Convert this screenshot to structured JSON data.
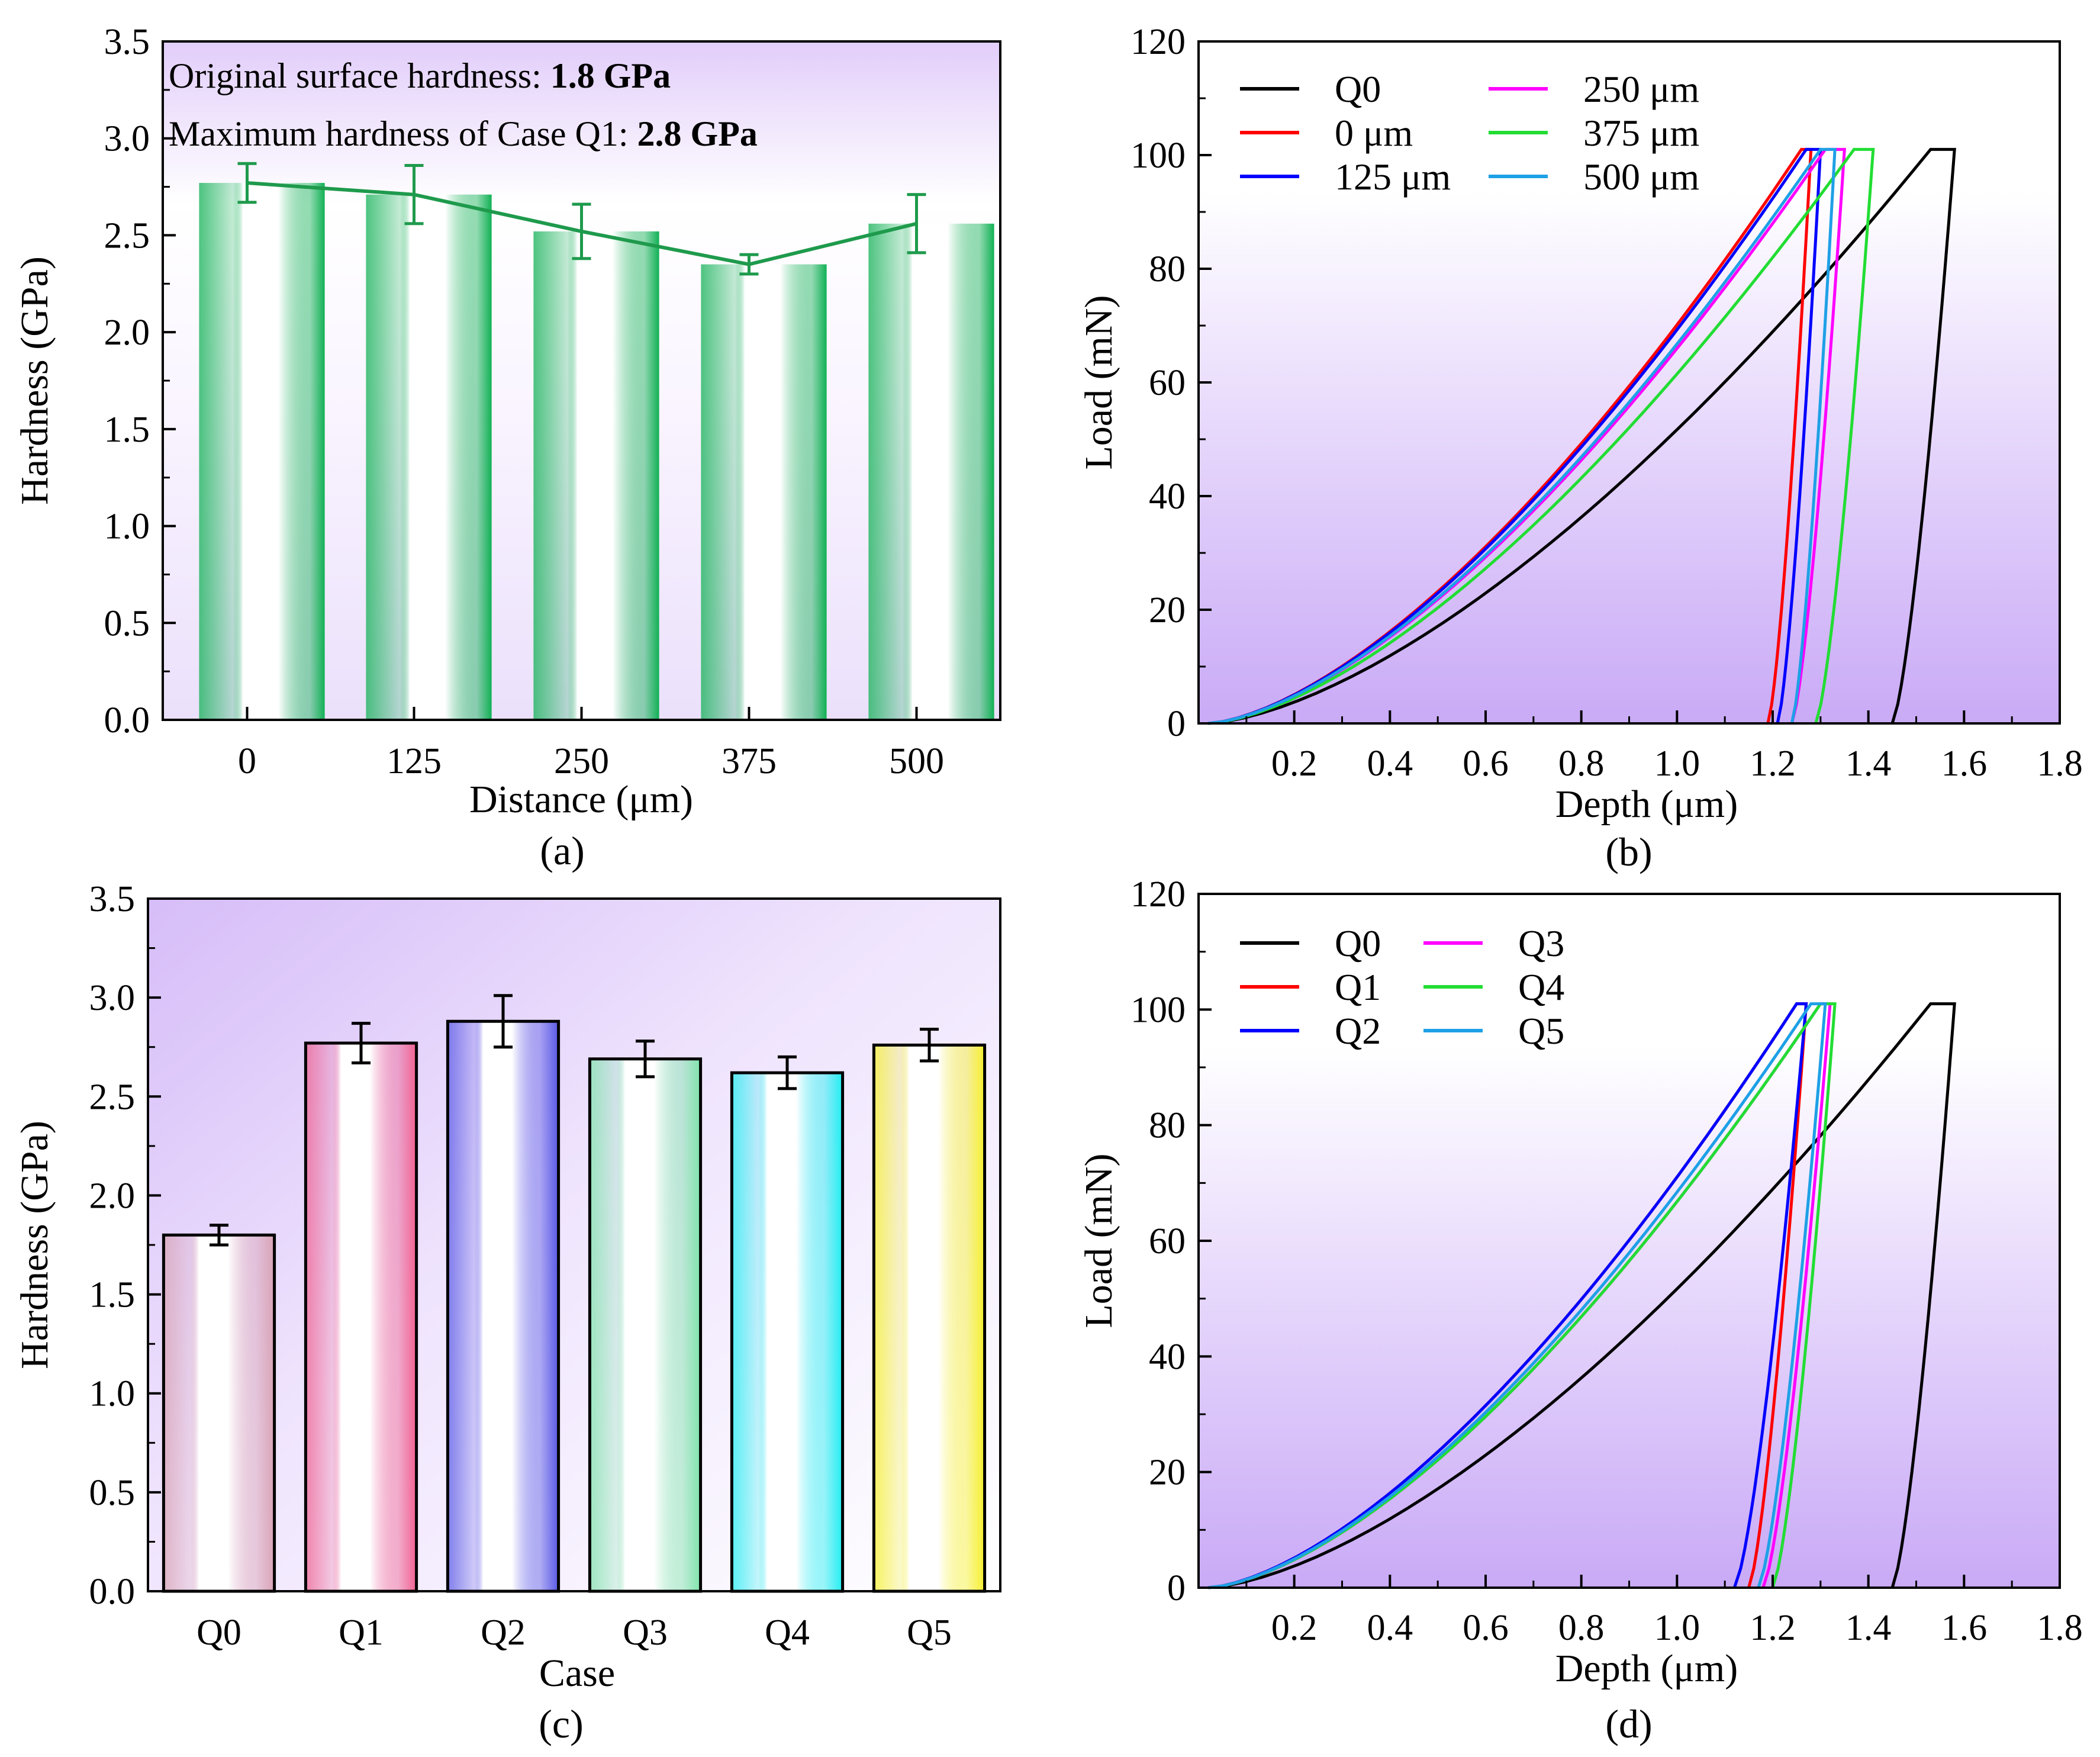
{
  "panels": [
    {
      "id": "a",
      "caption": "(a)",
      "chart_data": {
        "type": "bar",
        "xlabel": "Distance (μm)",
        "ylabel": "Hardness (GPa)",
        "ylim": [
          0,
          3.5
        ],
        "yticks": [
          "0.0",
          "0.5",
          "1.0",
          "1.5",
          "2.0",
          "2.5",
          "3.0",
          "3.5"
        ],
        "categories": [
          "0",
          "125",
          "250",
          "375",
          "500"
        ],
        "values": [
          2.77,
          2.71,
          2.52,
          2.35,
          2.56
        ],
        "errors": [
          0.1,
          0.15,
          0.14,
          0.05,
          0.15
        ],
        "bar_color": "#12b155",
        "line_color": "#1e9a4c",
        "annotations": [
          {
            "prefix": "Original surface hardness: ",
            "bold": "1.8 GPa"
          },
          {
            "prefix": "Maximum hardness of Case Q1: ",
            "bold": "2.8 GPa"
          }
        ]
      }
    },
    {
      "id": "b",
      "caption": "(b)",
      "chart_data": {
        "type": "line",
        "xlabel": "Depth (μm)",
        "ylabel": "Load (mN)",
        "xlim": [
          0,
          1.8
        ],
        "ylim": [
          0,
          120
        ],
        "xticks": [
          "0.2",
          "0.4",
          "0.6",
          "0.8",
          "1.0",
          "1.2",
          "1.4",
          "1.6",
          "1.8"
        ],
        "yticks": [
          "0",
          "20",
          "40",
          "60",
          "80",
          "100",
          "120"
        ],
        "legend_columns": 2,
        "series": [
          {
            "name": "Q0",
            "color": "#000000",
            "h_end": 1.53,
            "h_max": 1.58,
            "h_f": 1.45
          },
          {
            "name": "0 μm",
            "color": "#ff0000",
            "h_end": 1.26,
            "h_max": 1.28,
            "h_f": 1.19
          },
          {
            "name": "125 μm",
            "color": "#0000ff",
            "h_end": 1.27,
            "h_max": 1.3,
            "h_f": 1.21
          },
          {
            "name": "250 μm",
            "color": "#ff00ff",
            "h_end": 1.31,
            "h_max": 1.35,
            "h_f": 1.24
          },
          {
            "name": "375 μm",
            "color": "#22dd33",
            "h_end": 1.37,
            "h_max": 1.41,
            "h_f": 1.29
          },
          {
            "name": "500 μm",
            "color": "#1ea0e6",
            "h_end": 1.3,
            "h_max": 1.33,
            "h_f": 1.24
          }
        ]
      }
    },
    {
      "id": "c",
      "caption": "(c)",
      "chart_data": {
        "type": "bar",
        "xlabel": "Case",
        "ylabel": "Hardness (GPa)",
        "ylim": [
          0,
          3.5
        ],
        "yticks": [
          "0.0",
          "0.5",
          "1.0",
          "1.5",
          "2.0",
          "2.5",
          "3.0",
          "3.5"
        ],
        "categories": [
          "Q0",
          "Q1",
          "Q2",
          "Q3",
          "Q4",
          "Q5"
        ],
        "values": [
          1.8,
          2.77,
          2.88,
          2.69,
          2.62,
          2.76
        ],
        "errors": [
          0.05,
          0.1,
          0.13,
          0.09,
          0.08,
          0.08
        ],
        "colors": [
          "#d9a3b5",
          "#f06292",
          "#5a5ae6",
          "#7fe3ab",
          "#22eef2",
          "#f6f02e"
        ]
      }
    },
    {
      "id": "d",
      "caption": "(d)",
      "chart_data": {
        "type": "line",
        "xlabel": "Depth (μm)",
        "ylabel": "Load (mN)",
        "xlim": [
          0,
          1.8
        ],
        "ylim": [
          0,
          120
        ],
        "xticks": [
          "0.2",
          "0.4",
          "0.6",
          "0.8",
          "1.0",
          "1.2",
          "1.4",
          "1.6",
          "1.8"
        ],
        "yticks": [
          "0",
          "20",
          "40",
          "60",
          "80",
          "100",
          "120"
        ],
        "legend_columns": 2,
        "series": [
          {
            "name": "Q0",
            "color": "#000000",
            "h_end": 1.53,
            "h_max": 1.58,
            "h_f": 1.45
          },
          {
            "name": "Q1",
            "color": "#ff0000",
            "h_end": 1.25,
            "h_max": 1.27,
            "h_f": 1.15
          },
          {
            "name": "Q2",
            "color": "#0000ff",
            "h_end": 1.25,
            "h_max": 1.27,
            "h_f": 1.12
          },
          {
            "name": "Q3",
            "color": "#ff00ff",
            "h_end": 1.3,
            "h_max": 1.32,
            "h_f": 1.18
          },
          {
            "name": "Q4",
            "color": "#22dd33",
            "h_end": 1.3,
            "h_max": 1.33,
            "h_f": 1.2
          },
          {
            "name": "Q5",
            "color": "#1ea0e6",
            "h_end": 1.28,
            "h_max": 1.31,
            "h_f": 1.17
          }
        ]
      }
    }
  ]
}
